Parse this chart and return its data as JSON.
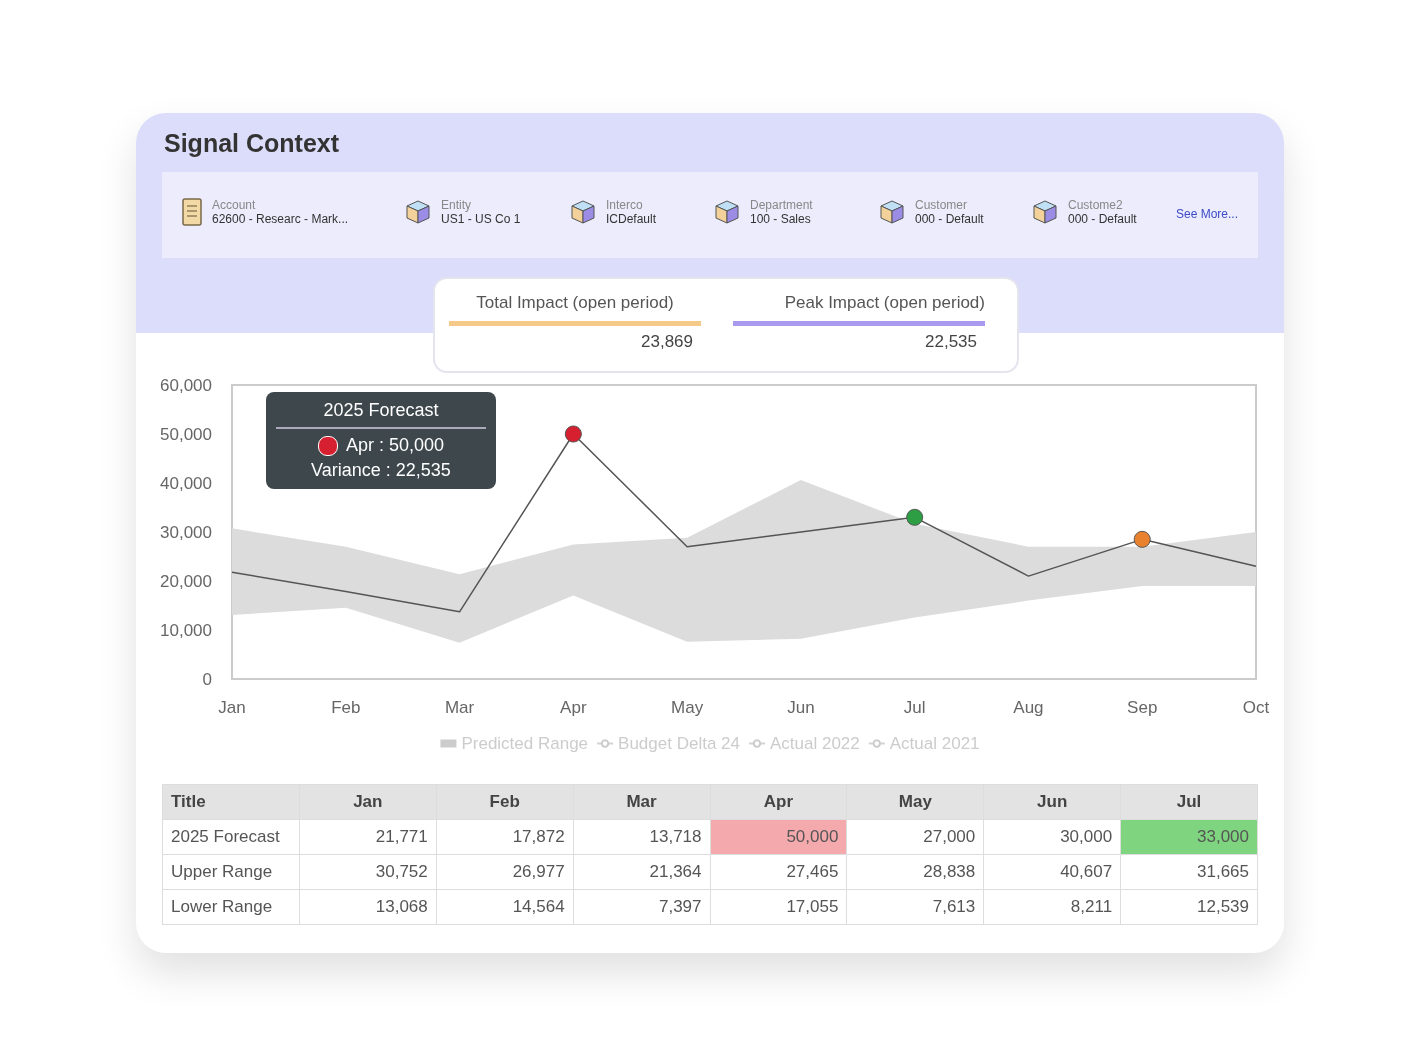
{
  "chart_data": [
    {
      "type": "other",
      "title": "Signal Context",
      "annotations": [
        "Account",
        "62600 - Researc - Mark...",
        "Entity",
        "US1 - US Co 1",
        "Interco",
        "ICDefault",
        "Department",
        "100 - Sales",
        "Customer",
        "000 - Default",
        "Custome2",
        "000 - Default",
        "See More...",
        "Total Impact (open period)",
        "23,869",
        "Peak Impact (open period)",
        "22,535"
      ],
      "colors": [
        "#f5c98a",
        "#a99af0"
      ]
    },
    {
      "type": "line",
      "categories": [
        "Jan",
        "Feb",
        "Mar",
        "Apr",
        "May",
        "Jun",
        "Jul",
        "Aug",
        "Sep",
        "Oct"
      ],
      "ylim": [
        0,
        60000
      ],
      "yticks": [
        0,
        {
          "value": 10000,
          "label": "10,000"
        },
        {
          "value": 20000,
          "label": "20,000"
        },
        {
          "value": 30000,
          "label": "30,000"
        },
        {
          "value": 40000,
          "label": "40,000"
        },
        {
          "value": 50000,
          "label": "50,000"
        },
        {
          "value": 60000,
          "label": "60,000"
        }
      ],
      "grid": false,
      "legend": "bottom",
      "line_style": "solid",
      "annotations": [
        "2025 Forecast",
        "Apr : 50,000",
        "Variance : 22,535"
      ],
      "series": [
        {
          "type": "line",
          "color": "#555555",
          "values": [
            21771,
            17872,
            13718,
            50000,
            27000,
            30000,
            33000,
            21000,
            28500,
            23000
          ],
          "lower": [
            13068,
            14564,
            7397,
            17055,
            7613,
            8211,
            12539,
            16000,
            19000,
            19000
          ],
          "upper": [
            30752,
            26977,
            21364,
            27465,
            28838,
            40607,
            31665,
            27000,
            27000,
            30000
          ],
          "colors": [
            null,
            null,
            null,
            "#d62030",
            null,
            null,
            "#2e9e44",
            null,
            "#e8822e",
            null
          ]
        },
        {
          "name": "Predicted Range",
          "type": "bar",
          "color": "#cccccc",
          "values": [
            null,
            null,
            null,
            null,
            null,
            null,
            null,
            null,
            null,
            null
          ]
        },
        {
          "name": "Budget Delta 24",
          "type": "line",
          "color": "#cccccc",
          "values": [
            null,
            null,
            null,
            null,
            null,
            null,
            null,
            null,
            null,
            null
          ]
        },
        {
          "name": "Actual 2022",
          "type": "line",
          "color": "#cccccc",
          "values": [
            null,
            null,
            null,
            null,
            null,
            null,
            null,
            null,
            null,
            null
          ]
        },
        {
          "name": "Actual 2021",
          "type": "line",
          "color": "#cccccc",
          "values": [
            null,
            null,
            null,
            null,
            null,
            null,
            null,
            null,
            null,
            null
          ]
        }
      ]
    },
    {
      "type": "other",
      "ylabel": "Title",
      "categories": [
        "Jan",
        "Feb",
        "Mar",
        "Apr",
        "May",
        "Jun",
        "Jul"
      ],
      "y_categories": [
        "2025 Forecast",
        "Upper Range",
        "Lower Range"
      ],
      "cell_labels": [
        [
          "21,771",
          "17,872",
          "13,718",
          "50,000",
          "27,000",
          "30,000",
          "33,000"
        ],
        [
          "30,752",
          "26,977",
          "21,364",
          "27,465",
          "28,838",
          "40,607",
          "31,665"
        ],
        [
          "13,068",
          "14,564",
          "7,397",
          "17,055",
          "7,613",
          "8,211",
          "12,539"
        ]
      ],
      "colors": [
        [
          null,
          null,
          null,
          "#f4a9ac",
          null,
          null,
          "#7fd47f"
        ],
        [
          null,
          null,
          null,
          null,
          null,
          null,
          null
        ],
        [
          null,
          null,
          null,
          null,
          null,
          null,
          null
        ]
      ]
    }
  ]
}
